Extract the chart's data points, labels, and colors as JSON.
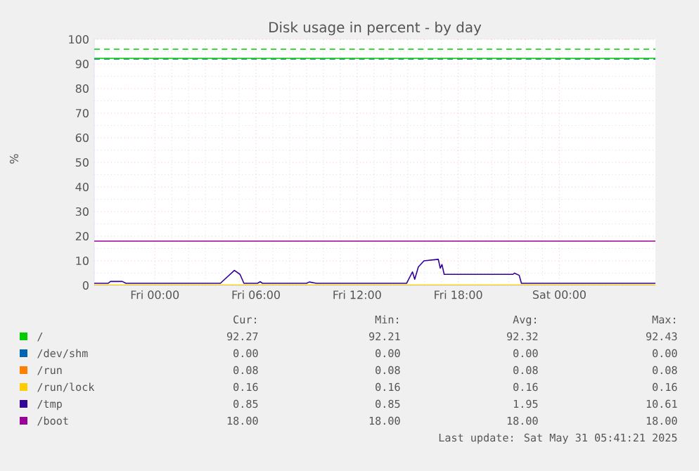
{
  "chart_data": {
    "type": "line",
    "title": "Disk usage in percent - by day",
    "ylabel": "%",
    "xlim": [
      "2025-05-29T20:24",
      "2025-05-31T05:42"
    ],
    "ylim": [
      0,
      100
    ],
    "xticks": [
      {
        "value": "2025-05-30T00:00",
        "label": "Fri 00:00"
      },
      {
        "value": "2025-05-30T06:00",
        "label": "Fri 06:00"
      },
      {
        "value": "2025-05-30T12:00",
        "label": "Fri 12:00"
      },
      {
        "value": "2025-05-30T18:00",
        "label": "Fri 18:00"
      },
      {
        "value": "2025-05-31T00:00",
        "label": "Sat 00:00"
      }
    ],
    "yticks": [
      0,
      10,
      20,
      30,
      40,
      50,
      60,
      70,
      80,
      90,
      100
    ],
    "grid": true,
    "legend": "bottom",
    "line_style": "solid",
    "series": [
      {
        "name": "/",
        "color": "#00cc00",
        "x": [
          "2025-05-29T20:24",
          "2025-05-30T14:00",
          "2025-05-31T05:42"
        ],
        "values": [
          92.3,
          92.3,
          92.27
        ]
      },
      {
        "name": "/dev/shm",
        "color": "#0066b3",
        "values": [
          null,
          null
        ]
      },
      {
        "name": "/run",
        "color": "#ff8000",
        "values": [
          null,
          null
        ]
      },
      {
        "name": "/run/lock",
        "color": "#ffcc00",
        "x": [
          "2025-05-29T20:24",
          "2025-05-31T05:42"
        ],
        "values": [
          0.16,
          0.16
        ]
      },
      {
        "name": "/tmp",
        "color": "#330099",
        "x": [
          "2025-05-29T20:24",
          "2025-05-29T21:13",
          "2025-05-29T21:22",
          "2025-05-29T22:04",
          "2025-05-29T22:17",
          "2025-05-30T03:53",
          "2025-05-30T04:43",
          "2025-05-30T05:03",
          "2025-05-30T05:17",
          "2025-05-30T06:05",
          "2025-05-30T06:15",
          "2025-05-30T06:23",
          "2025-05-30T09:00",
          "2025-05-30T09:10",
          "2025-05-30T09:35",
          "2025-05-30T09:43",
          "2025-05-30T14:56",
          "2025-05-30T15:17",
          "2025-05-30T15:25",
          "2025-05-30T15:38",
          "2025-05-30T15:58",
          "2025-05-30T16:49",
          "2025-05-30T16:56",
          "2025-05-30T17:02",
          "2025-05-30T17:10",
          "2025-05-30T21:15",
          "2025-05-30T21:20",
          "2025-05-30T21:37",
          "2025-05-30T21:45",
          "2025-05-31T05:42"
        ],
        "values": [
          0.85,
          0.85,
          1.6,
          1.6,
          0.85,
          0.85,
          6.1,
          4.5,
          0.85,
          0.85,
          1.5,
          0.85,
          0.85,
          1.4,
          0.85,
          0.85,
          0.85,
          5.5,
          2.5,
          7.5,
          10.0,
          10.61,
          7.0,
          8.5,
          4.5,
          4.5,
          5.0,
          4.1,
          0.85,
          0.85
        ]
      },
      {
        "name": "/boot",
        "color": "#990099",
        "x": [
          "2025-05-29T20:24",
          "2025-05-31T05:42"
        ],
        "values": [
          18,
          18
        ]
      }
    ],
    "ref_lines": [
      {
        "axis": "y",
        "value": 96,
        "color": "#00cc00",
        "line_style": "dashed"
      },
      {
        "axis": "y",
        "value": 92,
        "color": "#0066b3",
        "line_style": "dashed"
      }
    ],
    "annotations": [
      "Cur:",
      "Min:",
      "Avg:",
      "Max:",
      "92.27",
      "92.21",
      "92.32",
      "92.43",
      "0.00",
      "0.00",
      "0.00",
      "0.00",
      "0.08",
      "0.08",
      "0.08",
      "0.08",
      "0.16",
      "0.16",
      "0.16",
      "0.16",
      "0.85",
      "0.85",
      "1.95",
      "10.61",
      "18.00",
      "18.00",
      "18.00",
      "18.00",
      "Last update: Sat May 31 05:41:21 2025"
    ]
  }
}
